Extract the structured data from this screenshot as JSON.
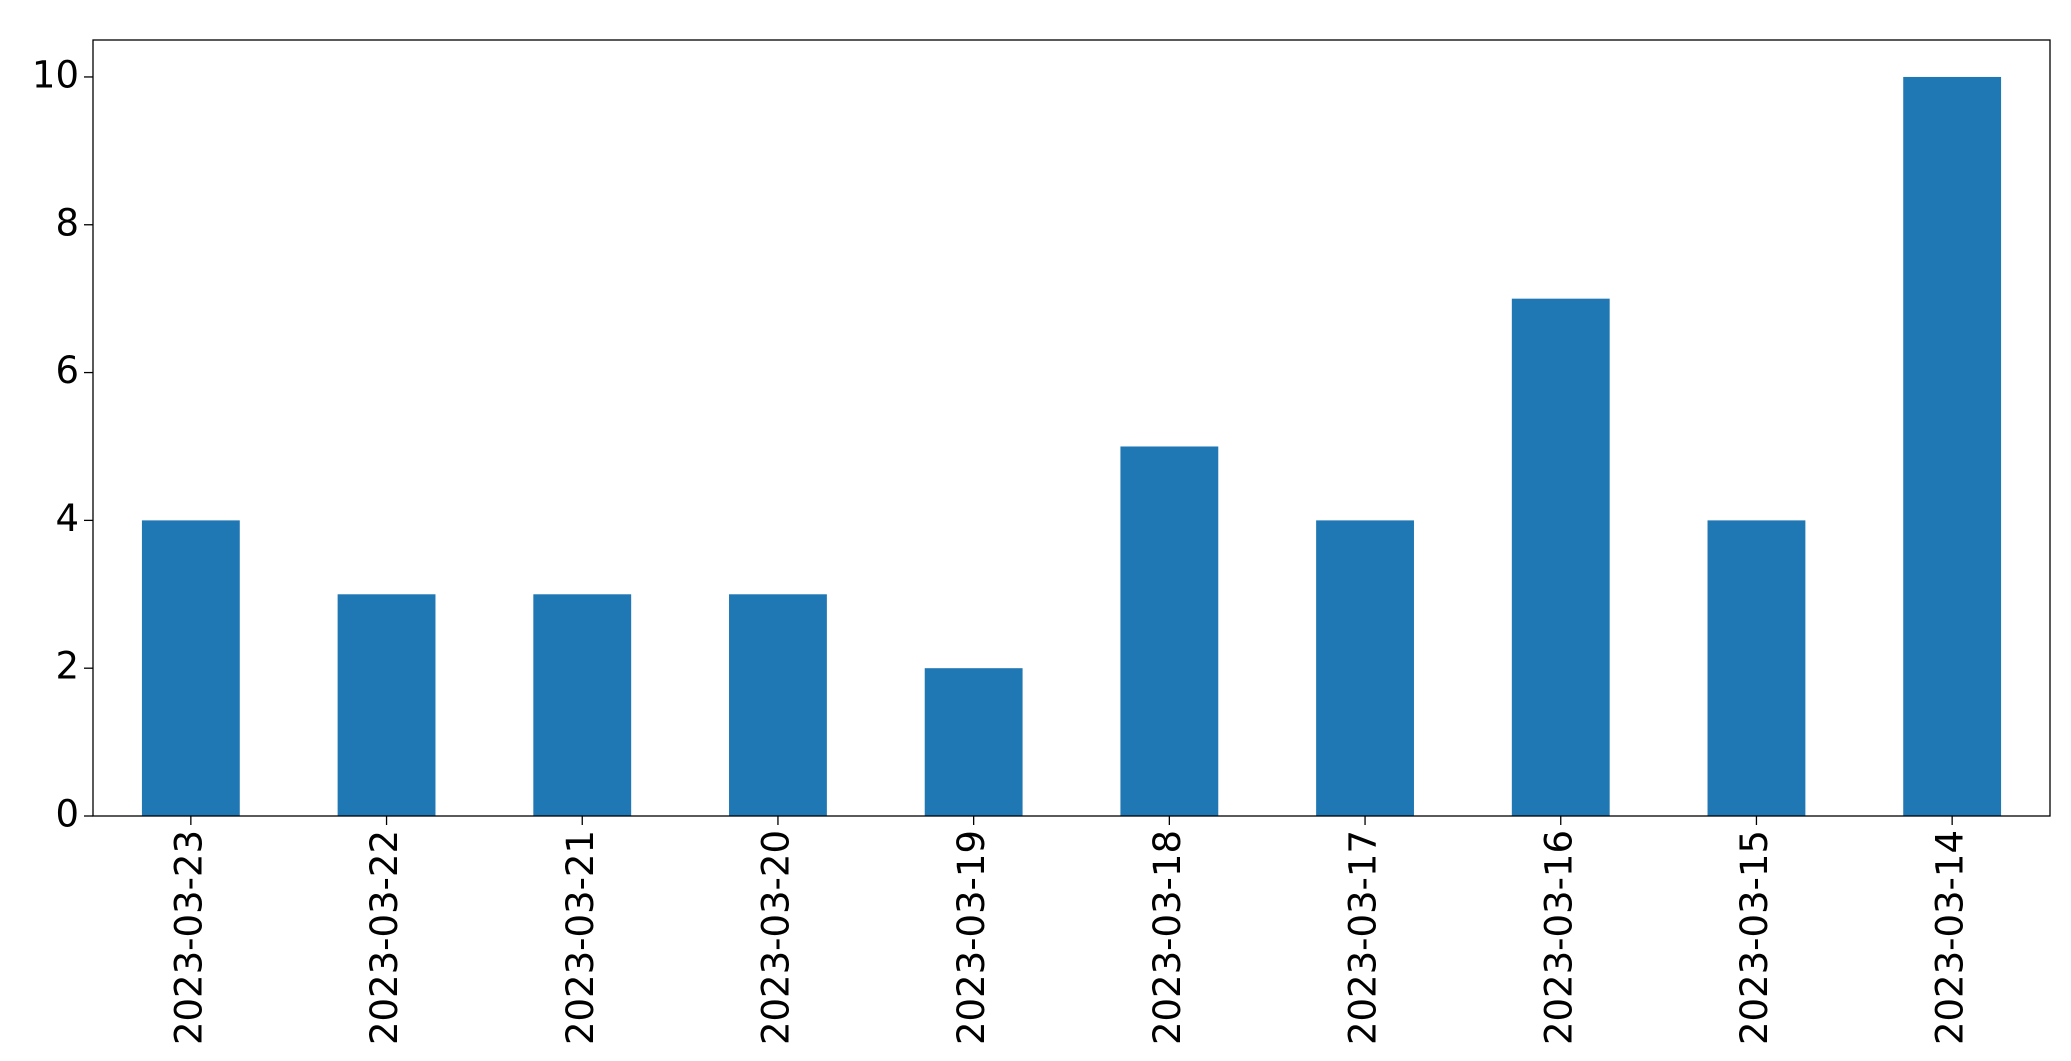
{
  "chart_data": {
    "type": "bar",
    "categories": [
      "2023-03-23",
      "2023-03-22",
      "2023-03-21",
      "2023-03-20",
      "2023-03-19",
      "2023-03-18",
      "2023-03-17",
      "2023-03-16",
      "2023-03-15",
      "2023-03-14"
    ],
    "values": [
      4,
      3,
      3,
      3,
      2,
      5,
      4,
      7,
      4,
      10
    ],
    "color": "#1f77b4",
    "ylim": [
      0,
      10.5
    ],
    "yticks": [
      0,
      2,
      4,
      6,
      8,
      10
    ],
    "grid": false
  }
}
